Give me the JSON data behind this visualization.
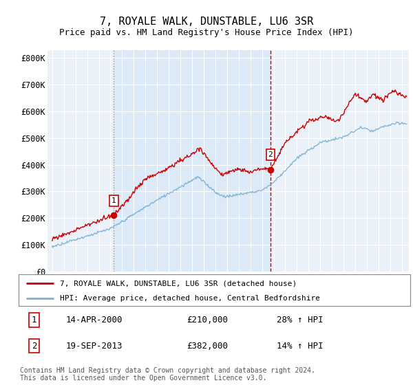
{
  "title": "7, ROYALE WALK, DUNSTABLE, LU6 3SR",
  "subtitle": "Price paid vs. HM Land Registry's House Price Index (HPI)",
  "ylabel_ticks": [
    "£0",
    "£100K",
    "£200K",
    "£300K",
    "£400K",
    "£500K",
    "£600K",
    "£700K",
    "£800K"
  ],
  "ytick_values": [
    0,
    100000,
    200000,
    300000,
    400000,
    500000,
    600000,
    700000,
    800000
  ],
  "ylim": [
    0,
    830000
  ],
  "xlim_start": 1994.6,
  "xlim_end": 2025.6,
  "background_color": "#dce9f7",
  "grid_color": "#ffffff",
  "marker1_x": 2000.29,
  "marker1_y": 210000,
  "marker2_x": 2013.72,
  "marker2_y": 382000,
  "vline1_x": 2000.29,
  "vline2_x": 2013.72,
  "legend_line1": "7, ROYALE WALK, DUNSTABLE, LU6 3SR (detached house)",
  "legend_line2": "HPI: Average price, detached house, Central Bedfordshire",
  "annotation1": [
    "1",
    "14-APR-2000",
    "£210,000",
    "28% ↑ HPI"
  ],
  "annotation2": [
    "2",
    "19-SEP-2013",
    "£382,000",
    "14% ↑ HPI"
  ],
  "footer": "Contains HM Land Registry data © Crown copyright and database right 2024.\nThis data is licensed under the Open Government Licence v3.0.",
  "line_red": "#cc0000",
  "line_blue": "#7ab0d4",
  "vline1_color": "#aaaaaa",
  "vline2_color": "#cc0000",
  "marker_box_color": "#cc0000",
  "fill_color": "#dce9f7",
  "outside_fill": "#eaf1f8"
}
